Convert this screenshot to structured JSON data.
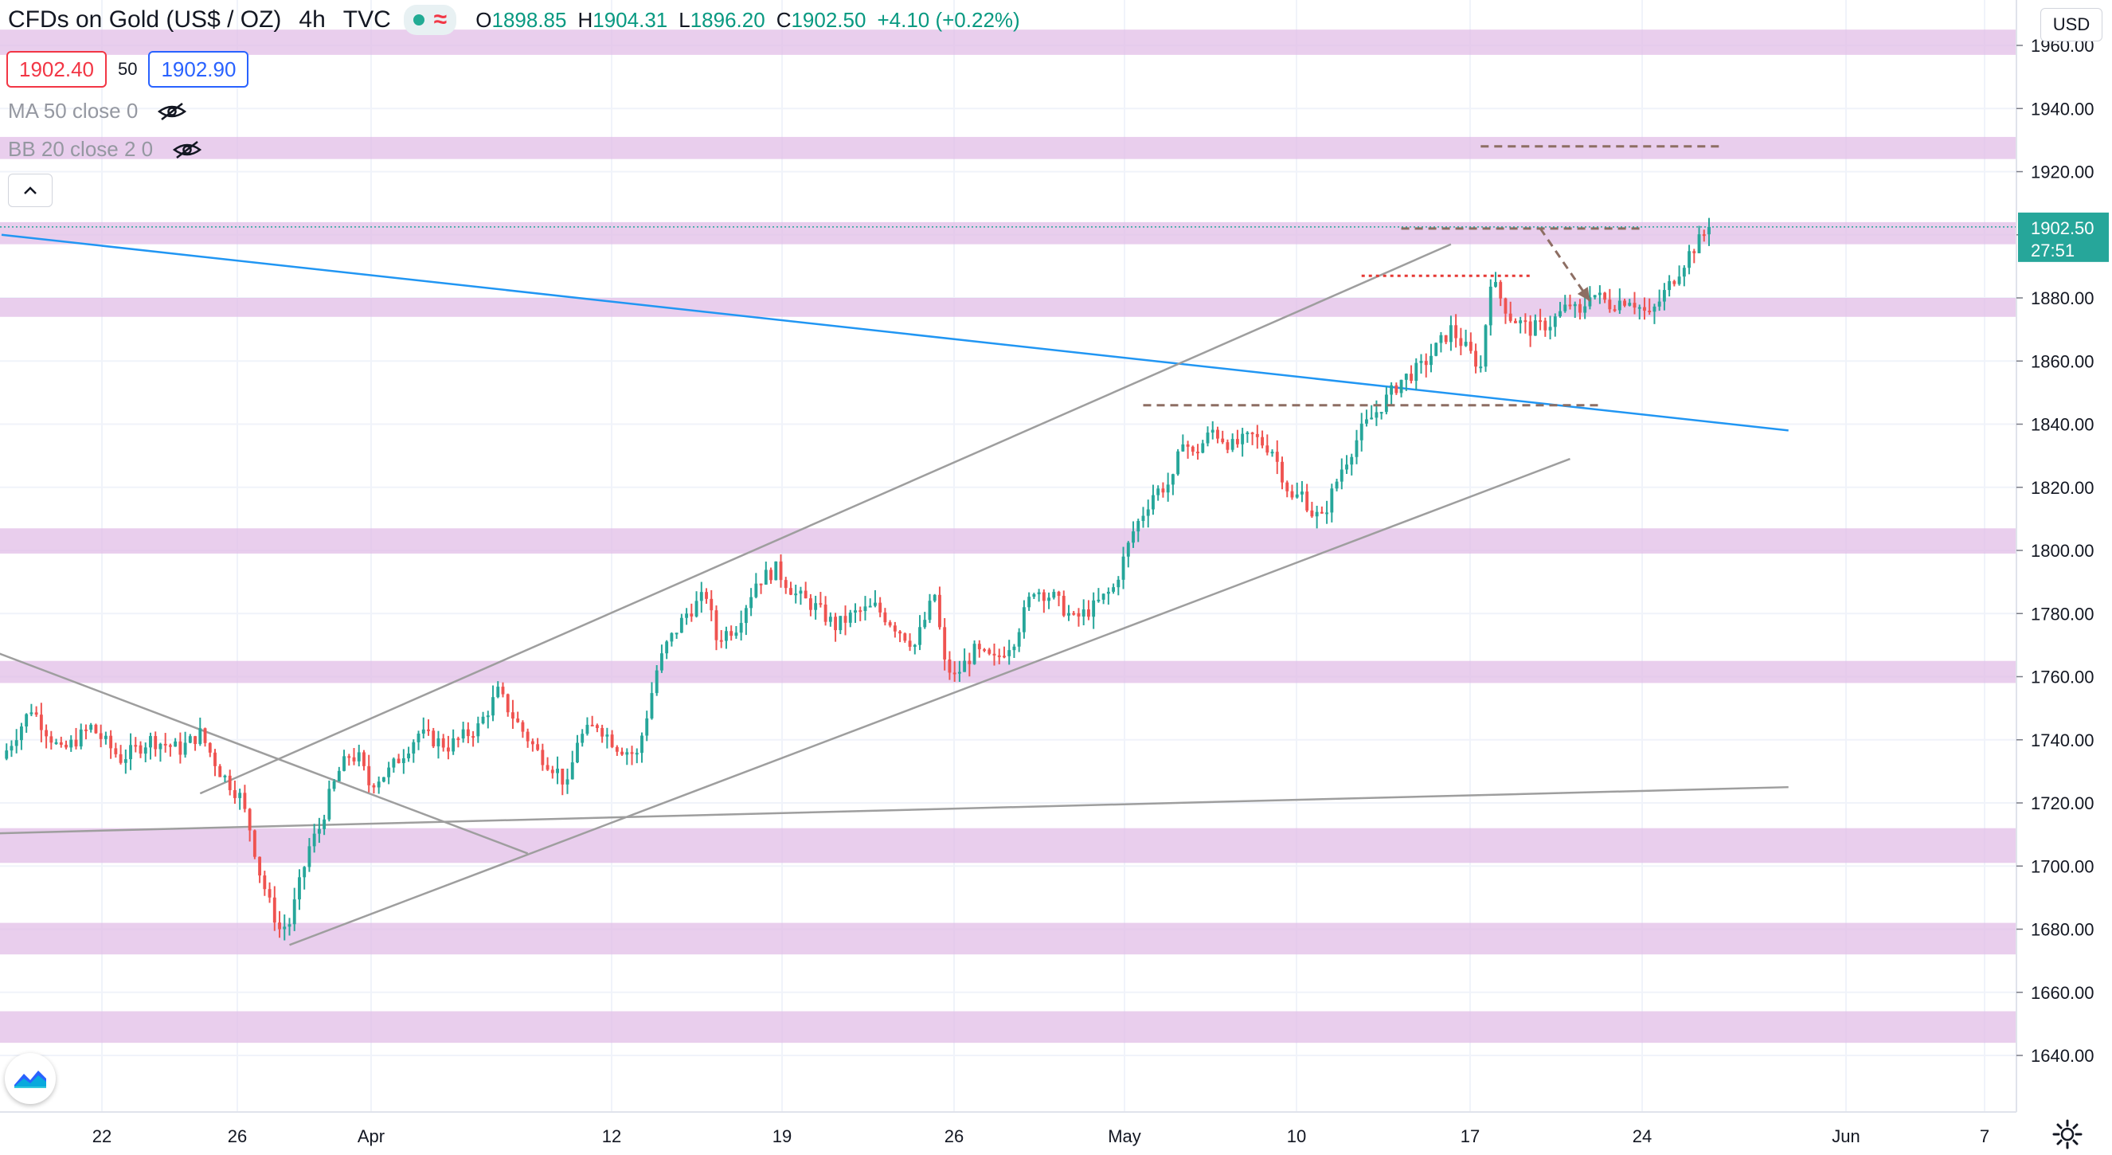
{
  "header": {
    "symbol": "CFDs on Gold (US$ / OZ)",
    "interval": "4h",
    "source": "TVC",
    "o_label": "O",
    "o_value": "1898.85",
    "h_label": "H",
    "h_value": "1904.31",
    "l_label": "L",
    "l_value": "1896.20",
    "c_label": "C",
    "c_value": "1902.50",
    "change": "+4.10 (+0.22%)"
  },
  "trade": {
    "bid": "1902.40",
    "spread": "50",
    "ask": "1902.90"
  },
  "indicators": [
    {
      "label": "MA 50 close 0"
    },
    {
      "label": "BB 20 close 2 0"
    }
  ],
  "price_axis": {
    "currency": "USD",
    "last_price": "1902.50",
    "countdown": "27:51"
  },
  "colors": {
    "up": "#26a69a",
    "down": "#ef5350",
    "zone": "#e1bee7",
    "trendline_blue": "#2196f3",
    "trendline_grey": "#9e9e9e",
    "level_dashed": "#8d6e63",
    "level_red_dotted": "#e53935",
    "last_price_tag": "#26a69a"
  },
  "icons": {
    "collapse": "chevron-up-icon",
    "logo": "tradingview-logo-icon",
    "settings": "gear-icon",
    "visibility": "eye-off-icon"
  },
  "chart_data": {
    "type": "candlestick",
    "title": "CFDs on Gold (US$ / OZ)",
    "interval": "4h",
    "xlabel": "",
    "ylabel": "",
    "ylim": [
      1628,
      1968
    ],
    "y_ticks": [
      1640,
      1660,
      1680,
      1700,
      1720,
      1740,
      1760,
      1780,
      1800,
      1820,
      1840,
      1860,
      1880,
      1900,
      1920,
      1940,
      1960
    ],
    "x_tick_labels": [
      "22",
      "26",
      "Apr",
      "12",
      "19",
      "26",
      "May",
      "10",
      "17",
      "24",
      "Jun",
      "7"
    ],
    "price_path": [
      [
        0,
        1734
      ],
      [
        6,
        1750
      ],
      [
        12,
        1736
      ],
      [
        18,
        1744
      ],
      [
        24,
        1734
      ],
      [
        30,
        1740
      ],
      [
        36,
        1737
      ],
      [
        40,
        1742
      ],
      [
        44,
        1730
      ],
      [
        48,
        1722
      ],
      [
        50,
        1712
      ],
      [
        52,
        1698
      ],
      [
        54,
        1688
      ],
      [
        56,
        1680
      ],
      [
        58,
        1682
      ],
      [
        60,
        1694
      ],
      [
        62,
        1706
      ],
      [
        64,
        1712
      ],
      [
        66,
        1722
      ],
      [
        68,
        1730
      ],
      [
        70,
        1735
      ],
      [
        72,
        1734
      ],
      [
        74,
        1726
      ],
      [
        78,
        1730
      ],
      [
        84,
        1742
      ],
      [
        90,
        1738
      ],
      [
        96,
        1744
      ],
      [
        100,
        1755
      ],
      [
        104,
        1745
      ],
      [
        108,
        1736
      ],
      [
        112,
        1730
      ],
      [
        114,
        1725
      ],
      [
        116,
        1740
      ],
      [
        120,
        1745
      ],
      [
        124,
        1738
      ],
      [
        128,
        1735
      ],
      [
        130,
        1748
      ],
      [
        132,
        1762
      ],
      [
        134,
        1770
      ],
      [
        138,
        1780
      ],
      [
        142,
        1786
      ],
      [
        144,
        1772
      ],
      [
        148,
        1776
      ],
      [
        152,
        1790
      ],
      [
        156,
        1794
      ],
      [
        160,
        1786
      ],
      [
        164,
        1782
      ],
      [
        168,
        1776
      ],
      [
        172,
        1780
      ],
      [
        176,
        1782
      ],
      [
        180,
        1776
      ],
      [
        184,
        1770
      ],
      [
        188,
        1786
      ],
      [
        190,
        1764
      ],
      [
        192,
        1760
      ],
      [
        196,
        1768
      ],
      [
        200,
        1765
      ],
      [
        204,
        1772
      ],
      [
        208,
        1788
      ],
      [
        212,
        1785
      ],
      [
        216,
        1778
      ],
      [
        220,
        1782
      ],
      [
        224,
        1788
      ],
      [
        228,
        1806
      ],
      [
        232,
        1818
      ],
      [
        236,
        1822
      ],
      [
        238,
        1836
      ],
      [
        240,
        1830
      ],
      [
        244,
        1838
      ],
      [
        248,
        1833
      ],
      [
        252,
        1836
      ],
      [
        256,
        1832
      ],
      [
        260,
        1816
      ],
      [
        262,
        1818
      ],
      [
        264,
        1812
      ],
      [
        266,
        1810
      ],
      [
        270,
        1826
      ],
      [
        274,
        1838
      ],
      [
        278,
        1846
      ],
      [
        282,
        1854
      ],
      [
        286,
        1858
      ],
      [
        290,
        1866
      ],
      [
        292,
        1870
      ],
      [
        294,
        1866
      ],
      [
        296,
        1862
      ],
      [
        298,
        1858
      ],
      [
        300,
        1886
      ],
      [
        304,
        1874
      ],
      [
        308,
        1870
      ],
      [
        312,
        1872
      ],
      [
        316,
        1878
      ],
      [
        318,
        1874
      ],
      [
        320,
        1882
      ],
      [
        324,
        1878
      ],
      [
        328,
        1880
      ],
      [
        332,
        1874
      ],
      [
        336,
        1884
      ],
      [
        340,
        1894
      ],
      [
        342,
        1898
      ],
      [
        344,
        1902.5
      ]
    ],
    "trendlines": [
      {
        "name": "",
        "color": "blue",
        "points": [
          [
            0,
            1900
          ],
          [
            360,
            1838
          ]
        ]
      },
      {
        "name": "",
        "color": "grey",
        "points": [
          [
            -10,
            1710
          ],
          [
            360,
            1725
          ]
        ]
      },
      {
        "name": "",
        "color": "grey",
        "points": [
          [
            40,
            1723
          ],
          [
            292,
            1897
          ]
        ]
      },
      {
        "name": "",
        "color": "grey",
        "points": [
          [
            58,
            1675
          ],
          [
            316,
            1829
          ]
        ]
      },
      {
        "name": "",
        "color": "grey",
        "points": [
          [
            -10,
            1773
          ],
          [
            106,
            1704
          ]
        ]
      }
    ],
    "horizontal_levels": [
      {
        "value": 1928,
        "style": "dashed",
        "color": "brown",
        "x_range": [
          298,
          346
        ]
      },
      {
        "value": 1902,
        "style": "dashed",
        "color": "brown",
        "x_range": [
          282,
          330
        ]
      },
      {
        "value": 1887,
        "style": "dotted",
        "color": "red",
        "x_range": [
          274,
          308
        ]
      },
      {
        "value": 1846,
        "style": "dashed",
        "color": "brown",
        "x_range": [
          230,
          322
        ]
      }
    ],
    "zones": [
      [
        1957,
        1965
      ],
      [
        1924,
        1931
      ],
      [
        1897,
        1904
      ],
      [
        1874,
        1880
      ],
      [
        1799,
        1807
      ],
      [
        1758,
        1765
      ],
      [
        1701,
        1712
      ],
      [
        1672,
        1682
      ],
      [
        1644,
        1654
      ]
    ],
    "projection_arrow": {
      "from": [
        310,
        1902
      ],
      "to": [
        320,
        1879
      ]
    },
    "grid": true,
    "legend": "none"
  }
}
